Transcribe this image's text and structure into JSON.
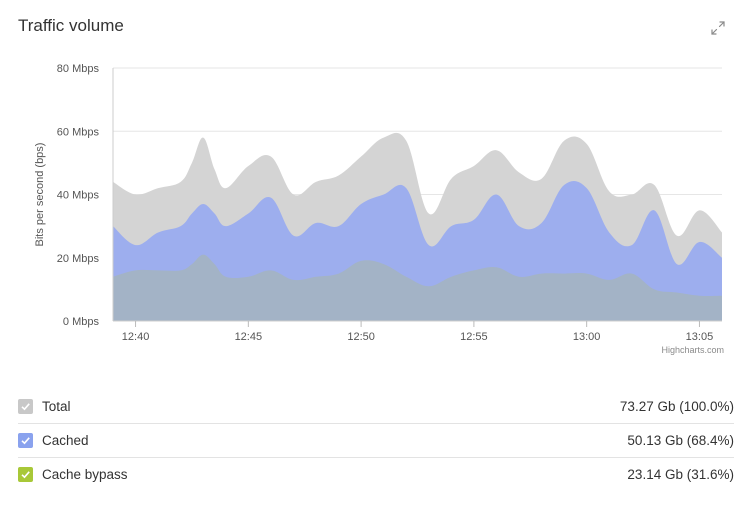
{
  "widget": {
    "title": "Traffic volume",
    "expand_icon": "expand-arrows-icon",
    "credit": "Highcharts.com"
  },
  "chart_data": {
    "type": "area",
    "title": "",
    "ylabel": "Bits per second (bps)",
    "xlabel": "",
    "ylim": [
      0,
      80
    ],
    "y_unit": "Mbps",
    "y_ticks": [
      "0 Mbps",
      "20 Mbps",
      "40 Mbps",
      "60 Mbps",
      "80 Mbps"
    ],
    "y_tick_values": [
      0,
      20,
      40,
      60,
      80
    ],
    "x_ticks": [
      "12:40",
      "12:45",
      "12:50",
      "12:55",
      "13:00",
      "13:05"
    ],
    "x_tick_minutes": [
      40,
      45,
      50,
      55,
      60,
      65
    ],
    "xlim_minutes": [
      39,
      66
    ],
    "grid": true,
    "overlapping": true,
    "series": [
      {
        "name": "Total",
        "color": "#d4d4d4",
        "minutes": [
          39,
          40,
          41,
          42,
          42.5,
          43,
          43.5,
          44,
          45,
          46,
          47,
          48,
          49,
          50,
          51,
          52,
          53,
          54,
          55,
          56,
          57,
          58,
          59,
          60,
          61,
          62,
          63,
          64,
          65,
          66
        ],
        "values": [
          44,
          40,
          42,
          44,
          50,
          58,
          48,
          42,
          49,
          52,
          40,
          44,
          46,
          52,
          58,
          57,
          34,
          45,
          49,
          54,
          47,
          45,
          57,
          56,
          41,
          40,
          43,
          27,
          35,
          28
        ]
      },
      {
        "name": "Cached",
        "color": "#9daeee",
        "minutes": [
          39,
          40,
          41,
          42,
          42.5,
          43,
          43.5,
          44,
          45,
          46,
          47,
          48,
          49,
          50,
          51,
          52,
          53,
          54,
          55,
          56,
          57,
          58,
          59,
          60,
          61,
          62,
          63,
          64,
          65,
          66
        ],
        "values": [
          30,
          24,
          28,
          30,
          34,
          37,
          34,
          30,
          34,
          39,
          27,
          31,
          30,
          37,
          40,
          42,
          24,
          30,
          32,
          40,
          30,
          31,
          43,
          42,
          28,
          24,
          35,
          18,
          25,
          20
        ]
      },
      {
        "name": "Cache bypass",
        "color": "#a3b3c6",
        "minutes": [
          39,
          40,
          41,
          42,
          42.5,
          43,
          43.5,
          44,
          45,
          46,
          47,
          48,
          49,
          50,
          51,
          52,
          53,
          54,
          55,
          56,
          57,
          58,
          59,
          60,
          61,
          62,
          63,
          64,
          65,
          66
        ],
        "values": [
          14,
          16,
          16,
          16,
          18,
          21,
          18,
          14,
          14,
          16,
          13,
          14,
          15,
          19,
          18,
          14,
          11,
          14,
          16,
          17,
          14,
          15,
          15,
          15,
          13,
          15,
          10,
          9,
          8,
          8
        ]
      }
    ]
  },
  "legend": {
    "items": [
      {
        "label": "Total",
        "value": "73.27 Gb (100.0%)",
        "color": "#c8c8c8",
        "checked": true
      },
      {
        "label": "Cached",
        "value": "50.13 Gb (68.4%)",
        "color": "#8aa2ee",
        "checked": true
      },
      {
        "label": "Cache bypass",
        "value": "23.14 Gb (31.6%)",
        "color": "#a8c838",
        "checked": true
      }
    ]
  }
}
